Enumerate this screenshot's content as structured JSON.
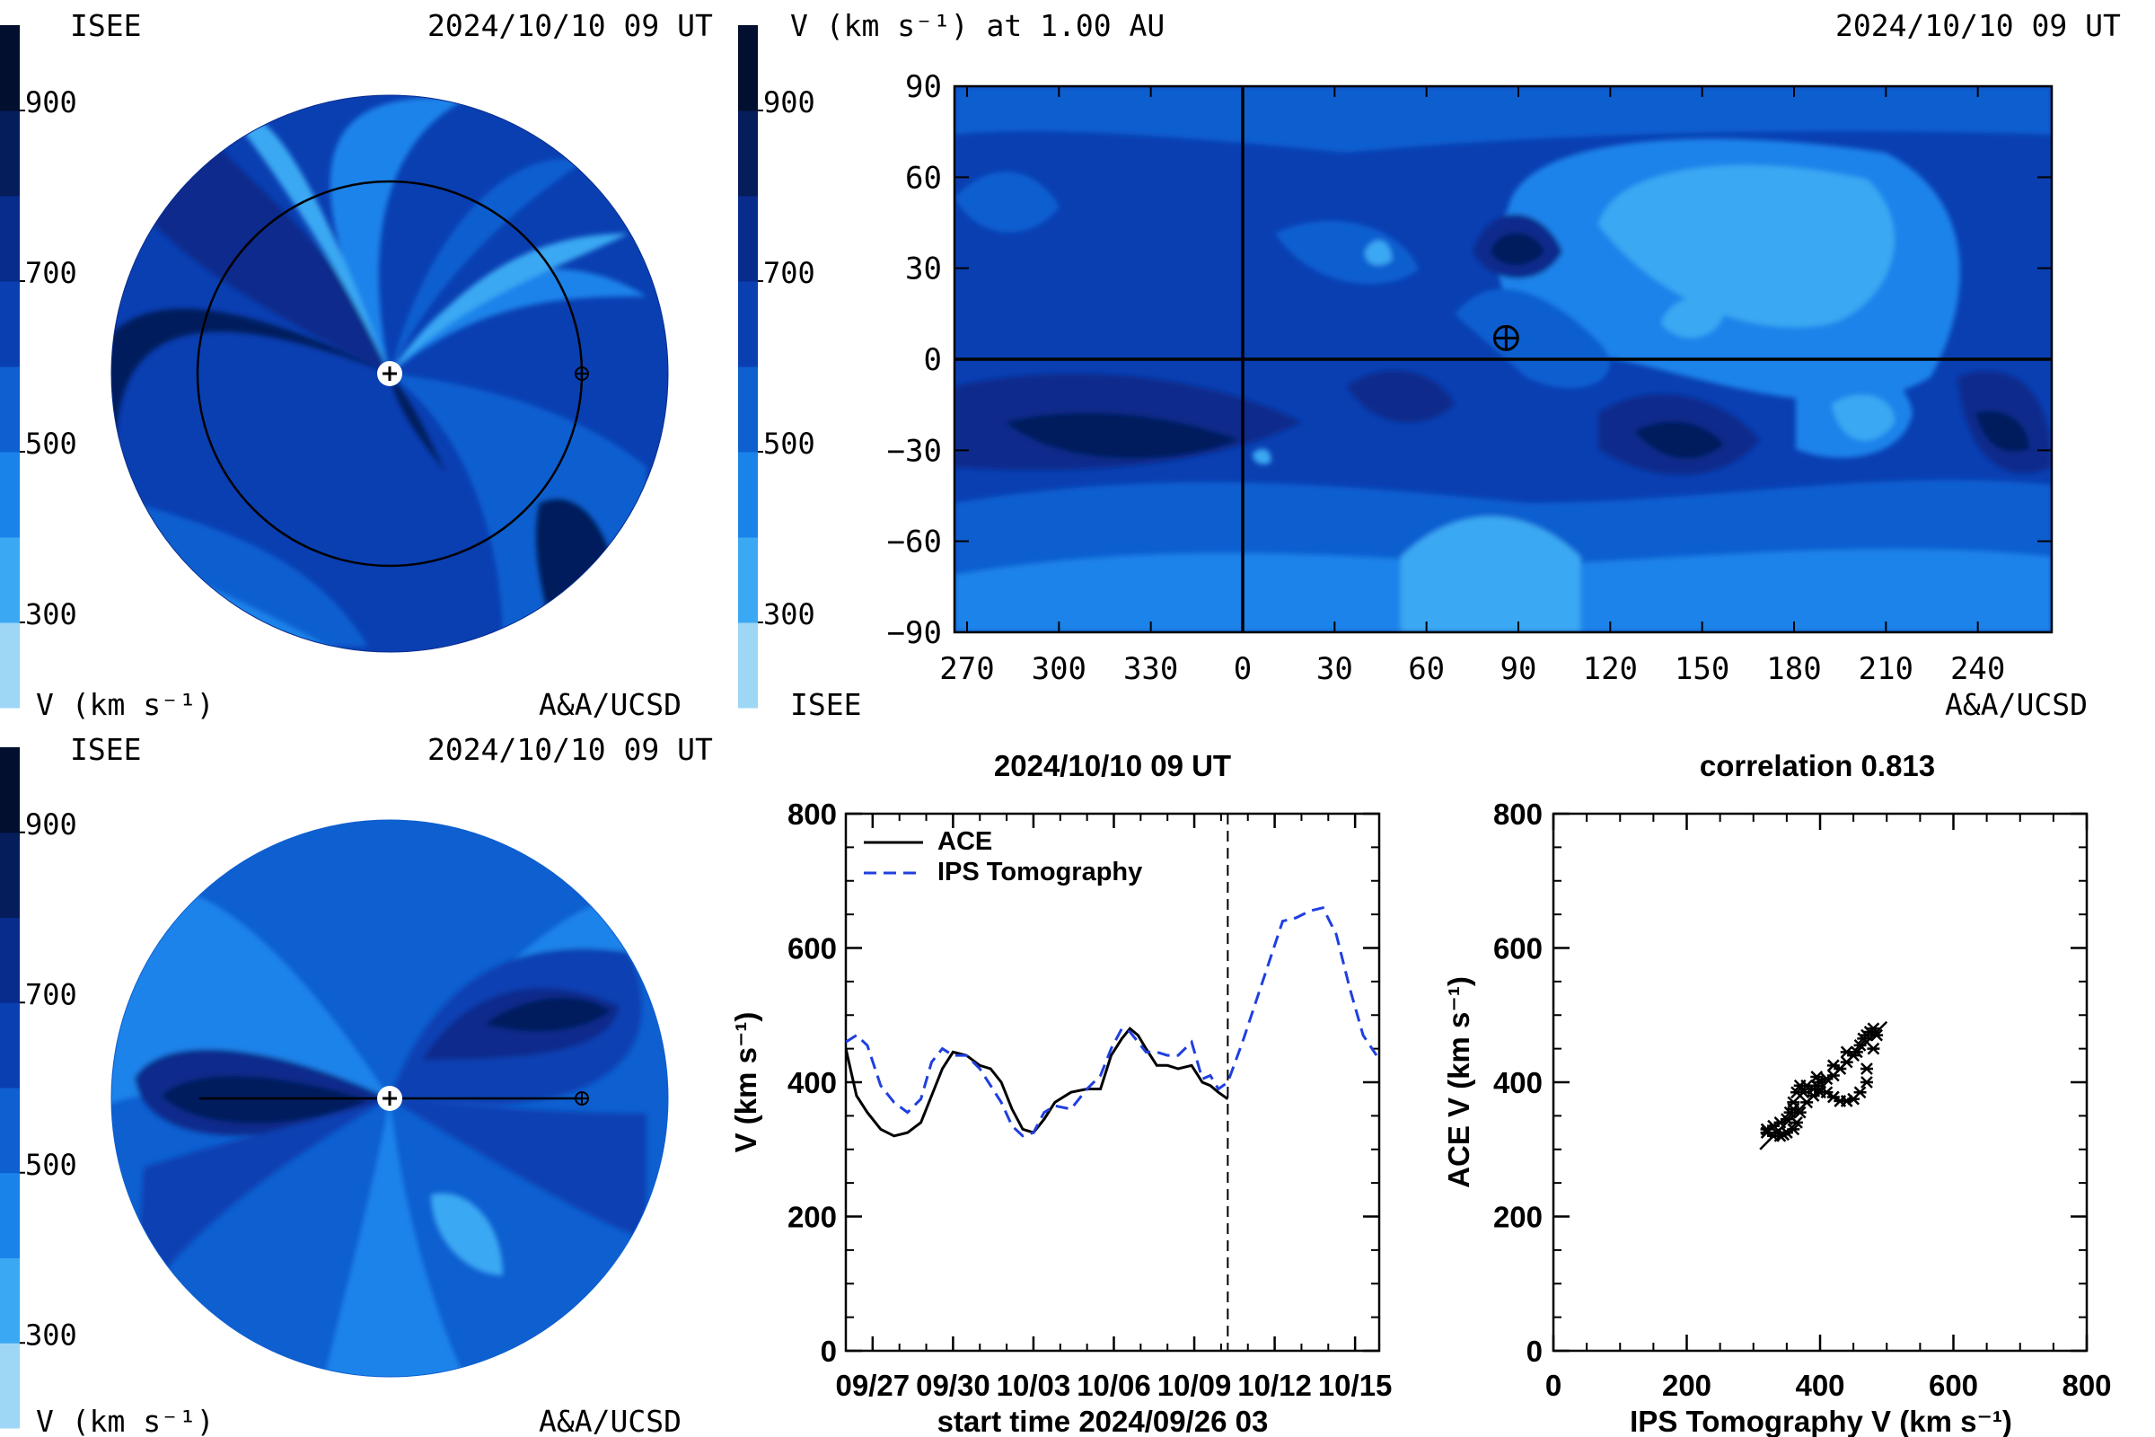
{
  "palette": [
    "#9ed6f6",
    "#3aa8f3",
    "#1a83ea",
    "#0e5fd0",
    "#0a3fb2",
    "#082c8c",
    "#061d5c",
    "#030f2e"
  ],
  "panels": {
    "ecliptic": {
      "label_left": "ISEE",
      "timestamp": "2024/10/10 09 UT",
      "units": "V (km s⁻¹)",
      "credit": "A&A/UCSD",
      "colorbar_ticks": [
        "900",
        "700",
        "500",
        "300"
      ]
    },
    "meridional": {
      "label_left": "ISEE",
      "timestamp": "2024/10/10 09 UT",
      "units": "V (km s⁻¹)",
      "credit": "A&A/UCSD",
      "colorbar_ticks": [
        "900",
        "700",
        "500",
        "300"
      ]
    },
    "synoptic": {
      "title": "V (km s⁻¹) at 1.00 AU",
      "timestamp": "2024/10/10 09 UT",
      "label_left": "ISEE",
      "credit": "A&A/UCSD",
      "colorbar_ticks": [
        "900",
        "700",
        "500",
        "300"
      ]
    }
  },
  "chart_data": [
    {
      "type": "heatmap",
      "panel": "synoptic",
      "title": "V (km s⁻¹) at 1.00 AU",
      "x_ticks": [
        "270",
        "300",
        "330",
        "0",
        "30",
        "60",
        "90",
        "120",
        "150",
        "180",
        "210",
        "240"
      ],
      "y_ticks": [
        "90",
        "60",
        "30",
        "0",
        "−30",
        "−60",
        "−90"
      ],
      "ylim": [
        -90,
        90
      ],
      "earth_position": {
        "longitude": 86,
        "latitude": 7
      },
      "colorscale_range": [
        200,
        1000
      ]
    },
    {
      "type": "line",
      "panel": "timeseries",
      "title": "2024/10/10 09 UT",
      "xlabel": "start time 2024/09/26 03",
      "ylabel": "V (km s⁻¹)",
      "xlim": [
        0,
        19.9
      ],
      "ylim": [
        0,
        800
      ],
      "x_ticks": [
        {
          "day": 1,
          "label": "09/27"
        },
        {
          "day": 4,
          "label": "09/30"
        },
        {
          "day": 7,
          "label": "10/03"
        },
        {
          "day": 10,
          "label": "10/06"
        },
        {
          "day": 13,
          "label": "10/09"
        },
        {
          "day": 16,
          "label": "10/12"
        },
        {
          "day": 19,
          "label": "10/15"
        }
      ],
      "y_ticks": [
        "0",
        "200",
        "400",
        "600",
        "800"
      ],
      "now_marker_day": 14.25,
      "series": [
        {
          "name": "ACE",
          "style": "solid",
          "color": "#000000",
          "x": [
            0.0,
            0.4,
            0.8,
            1.3,
            1.8,
            2.3,
            2.8,
            3.2,
            3.6,
            4.0,
            4.5,
            5.0,
            5.4,
            5.8,
            6.2,
            6.6,
            7.0,
            7.4,
            7.8,
            8.4,
            9.0,
            9.5,
            9.9,
            10.3,
            10.6,
            10.9,
            11.2,
            11.6,
            12.0,
            12.4,
            12.9,
            13.3,
            13.6,
            13.9,
            14.25
          ],
          "values": [
            450,
            380,
            355,
            330,
            320,
            325,
            340,
            380,
            420,
            445,
            440,
            425,
            420,
            400,
            360,
            330,
            325,
            345,
            370,
            385,
            390,
            390,
            440,
            465,
            480,
            470,
            450,
            425,
            425,
            420,
            425,
            400,
            395,
            385,
            375
          ]
        },
        {
          "name": "IPS Tomography",
          "style": "dashed",
          "color": "#1f3fe0",
          "x": [
            0.0,
            0.4,
            0.8,
            1.3,
            1.8,
            2.3,
            2.8,
            3.2,
            3.6,
            4.0,
            4.5,
            5.0,
            5.4,
            5.8,
            6.2,
            6.6,
            7.0,
            7.4,
            7.8,
            8.4,
            9.0,
            9.5,
            9.9,
            10.3,
            10.6,
            10.9,
            11.2,
            11.6,
            12.0,
            12.4,
            12.9,
            13.3,
            13.6,
            13.9,
            14.25,
            14.8,
            15.3,
            15.8,
            16.3,
            16.8,
            17.3,
            17.8,
            18.3,
            18.8,
            19.3,
            19.8
          ],
          "values": [
            460,
            470,
            455,
            395,
            370,
            355,
            375,
            430,
            450,
            440,
            440,
            420,
            395,
            370,
            335,
            320,
            325,
            355,
            365,
            360,
            390,
            410,
            450,
            480,
            475,
            460,
            445,
            445,
            440,
            440,
            460,
            405,
            410,
            390,
            400,
            460,
            520,
            580,
            640,
            645,
            655,
            660,
            620,
            540,
            470,
            440
          ]
        }
      ]
    },
    {
      "type": "scatter",
      "panel": "correlation",
      "title": "correlation 0.813",
      "xlabel": "IPS Tomography V (km s⁻¹)",
      "ylabel": "ACE V (km s⁻¹)",
      "xlim": [
        0,
        800
      ],
      "ylim": [
        0,
        800
      ],
      "x_ticks": [
        "0",
        "200",
        "400",
        "600",
        "800"
      ],
      "y_ticks": [
        "0",
        "200",
        "400",
        "600",
        "800"
      ],
      "fit_line": {
        "x": [
          310,
          500
        ],
        "y": [
          300,
          490
        ]
      },
      "points": [
        [
          320,
          330
        ],
        [
          330,
          335
        ],
        [
          340,
          340
        ],
        [
          350,
          345
        ],
        [
          355,
          355
        ],
        [
          360,
          370
        ],
        [
          365,
          385
        ],
        [
          370,
          395
        ],
        [
          380,
          395
        ],
        [
          390,
          390
        ],
        [
          395,
          395
        ],
        [
          400,
          400
        ],
        [
          410,
          405
        ],
        [
          420,
          410
        ],
        [
          430,
          420
        ],
        [
          440,
          430
        ],
        [
          450,
          440
        ],
        [
          455,
          445
        ],
        [
          460,
          455
        ],
        [
          465,
          465
        ],
        [
          470,
          470
        ],
        [
          475,
          475
        ],
        [
          480,
          480
        ],
        [
          485,
          470
        ],
        [
          480,
          450
        ],
        [
          470,
          420
        ],
        [
          470,
          400
        ],
        [
          460,
          385
        ],
        [
          450,
          375
        ],
        [
          440,
          372
        ],
        [
          430,
          372
        ],
        [
          420,
          378
        ],
        [
          410,
          385
        ],
        [
          400,
          385
        ],
        [
          390,
          380
        ],
        [
          380,
          370
        ],
        [
          370,
          355
        ],
        [
          365,
          340
        ],
        [
          360,
          330
        ],
        [
          350,
          325
        ],
        [
          345,
          322
        ],
        [
          340,
          320
        ],
        [
          335,
          325
        ],
        [
          330,
          320
        ],
        [
          320,
          325
        ],
        [
          360,
          360
        ],
        [
          375,
          385
        ],
        [
          395,
          408
        ],
        [
          420,
          425
        ],
        [
          440,
          445
        ]
      ]
    }
  ]
}
